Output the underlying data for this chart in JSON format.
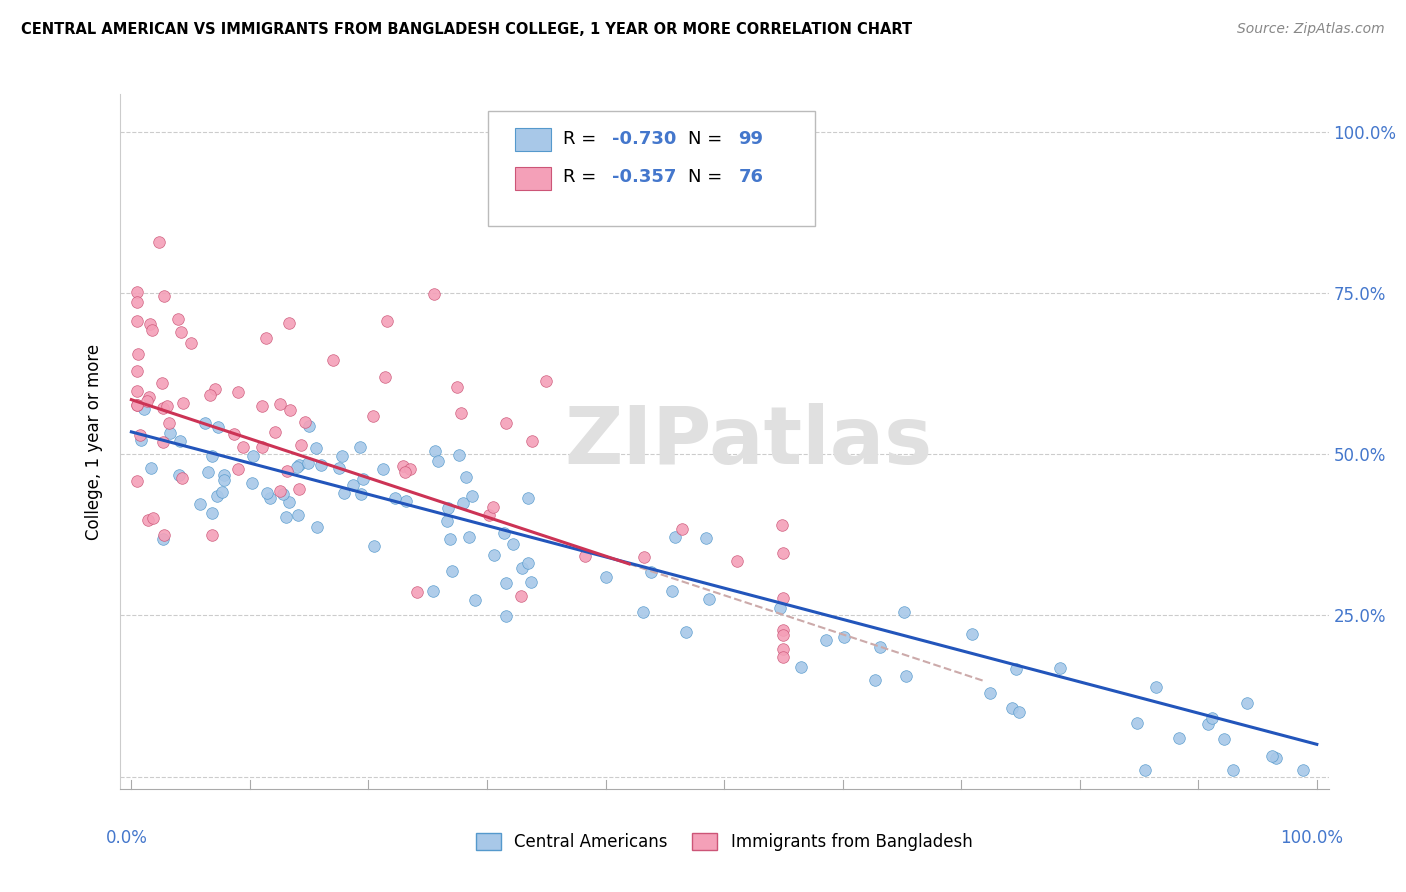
{
  "title": "CENTRAL AMERICAN VS IMMIGRANTS FROM BANGLADESH COLLEGE, 1 YEAR OR MORE CORRELATION CHART",
  "source": "Source: ZipAtlas.com",
  "ylabel": "College, 1 year or more",
  "legend_label1": "Central Americans",
  "legend_label2": "Immigrants from Bangladesh",
  "R1": "-0.730",
  "N1": "99",
  "R2": "-0.357",
  "N2": "76",
  "color_blue_fill": "#a8c8e8",
  "color_blue_edge": "#5599cc",
  "color_pink_fill": "#f4a0b8",
  "color_pink_edge": "#cc5577",
  "color_blue_line": "#2255bb",
  "color_pink_line": "#cc3355",
  "color_dashed": "#ccaaaa",
  "color_ytick": "#4477cc",
  "color_grid": "#cccccc",
  "watermark_color": "#e0e0e0",
  "seed": 17
}
